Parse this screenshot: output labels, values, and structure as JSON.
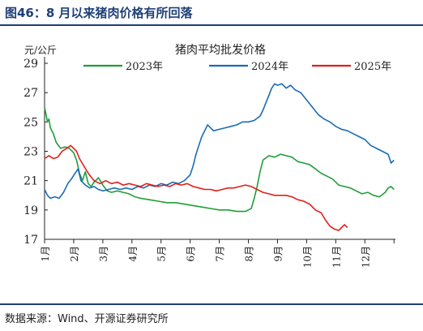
{
  "figure": {
    "title": "图46：8 月以来猪肉价格有所回落",
    "source": "数据来源：Wind、开源证券研究所"
  },
  "chart_data": {
    "type": "line",
    "title": "猪肉平均批发价格",
    "ylabel": "元/公斤",
    "xlabel": "",
    "ylim": [
      17,
      29
    ],
    "yticks": [
      17,
      19,
      21,
      23,
      25,
      27,
      29
    ],
    "xlim": [
      0,
      12.05
    ],
    "x_ticklabels": [
      "1月",
      "2月",
      "3月",
      "4月",
      "5月",
      "6月",
      "7月",
      "8月",
      "9月",
      "10月",
      "11月",
      "12月"
    ],
    "grid": false,
    "legend_position": "top",
    "series": [
      {
        "name": "2023年",
        "color": "#1f9e3a",
        "x": [
          0.0,
          0.05,
          0.1,
          0.15,
          0.2,
          0.3,
          0.4,
          0.55,
          0.7,
          0.85,
          1.0,
          1.1,
          1.2,
          1.3,
          1.4,
          1.5,
          1.6,
          1.7,
          1.85,
          2.0,
          2.15,
          2.3,
          2.5,
          2.7,
          2.9,
          3.1,
          3.3,
          3.6,
          3.9,
          4.2,
          4.5,
          4.8,
          5.1,
          5.4,
          5.7,
          6.0,
          6.3,
          6.6,
          6.9,
          7.0,
          7.1,
          7.2,
          7.3,
          7.4,
          7.5,
          7.7,
          7.9,
          8.1,
          8.3,
          8.5,
          8.7,
          8.9,
          9.1,
          9.3,
          9.5,
          9.7,
          9.9,
          10.1,
          10.3,
          10.5,
          10.7,
          10.9,
          11.1,
          11.3,
          11.5,
          11.7,
          11.8,
          11.9,
          12.0
        ],
        "values": [
          26.0,
          25.5,
          25.0,
          25.2,
          24.6,
          24.2,
          23.6,
          23.2,
          23.3,
          23.2,
          22.9,
          22.4,
          21.5,
          21.0,
          21.6,
          20.8,
          20.6,
          20.9,
          21.2,
          20.7,
          20.3,
          20.2,
          20.3,
          20.2,
          20.1,
          19.9,
          19.8,
          19.7,
          19.6,
          19.5,
          19.5,
          19.4,
          19.3,
          19.2,
          19.1,
          19.0,
          19.0,
          18.9,
          18.9,
          19.0,
          19.1,
          19.8,
          20.6,
          21.6,
          22.4,
          22.7,
          22.6,
          22.8,
          22.7,
          22.6,
          22.3,
          22.2,
          22.1,
          21.8,
          21.5,
          21.3,
          21.1,
          20.7,
          20.6,
          20.5,
          20.3,
          20.1,
          20.2,
          20.0,
          19.9,
          20.2,
          20.5,
          20.6,
          20.4
        ]
      },
      {
        "name": "2024年",
        "color": "#1a6cb5",
        "x": [
          0.0,
          0.1,
          0.2,
          0.35,
          0.5,
          0.65,
          0.8,
          0.95,
          1.05,
          1.15,
          1.25,
          1.4,
          1.55,
          1.7,
          1.85,
          2.0,
          2.2,
          2.4,
          2.6,
          2.8,
          3.0,
          3.2,
          3.4,
          3.6,
          3.8,
          4.0,
          4.2,
          4.4,
          4.6,
          4.8,
          5.0,
          5.1,
          5.2,
          5.3,
          5.4,
          5.5,
          5.6,
          5.7,
          5.8,
          6.0,
          6.2,
          6.4,
          6.6,
          6.8,
          7.0,
          7.2,
          7.4,
          7.5,
          7.6,
          7.7,
          7.8,
          7.9,
          8.0,
          8.15,
          8.3,
          8.45,
          8.6,
          8.8,
          9.0,
          9.2,
          9.4,
          9.6,
          9.8,
          10.0,
          10.2,
          10.4,
          10.6,
          10.8,
          11.0,
          11.2,
          11.4,
          11.6,
          11.8,
          11.9,
          12.0
        ],
        "values": [
          20.4,
          20.0,
          19.8,
          19.9,
          19.8,
          20.2,
          20.8,
          21.2,
          21.5,
          21.8,
          21.0,
          20.7,
          20.5,
          20.6,
          20.4,
          20.3,
          20.4,
          20.5,
          20.4,
          20.5,
          20.4,
          20.6,
          20.5,
          20.7,
          20.6,
          20.8,
          20.7,
          20.9,
          20.8,
          21.0,
          21.4,
          22.0,
          22.8,
          23.4,
          24.0,
          24.4,
          24.8,
          24.6,
          24.4,
          24.5,
          24.6,
          24.7,
          24.8,
          25.0,
          25.0,
          25.1,
          25.4,
          25.8,
          26.3,
          26.8,
          27.3,
          27.6,
          27.5,
          27.6,
          27.3,
          27.5,
          27.2,
          27.0,
          26.5,
          26.0,
          25.5,
          25.2,
          25.0,
          24.7,
          24.5,
          24.4,
          24.2,
          24.0,
          23.8,
          23.4,
          23.2,
          23.0,
          22.8,
          22.2,
          22.4
        ]
      },
      {
        "name": "2025年",
        "color": "#e0201b",
        "x": [
          0.0,
          0.15,
          0.3,
          0.45,
          0.6,
          0.75,
          0.9,
          1.0,
          1.1,
          1.2,
          1.35,
          1.5,
          1.7,
          1.9,
          2.1,
          2.3,
          2.5,
          2.7,
          2.9,
          3.1,
          3.3,
          3.5,
          3.7,
          3.9,
          4.1,
          4.3,
          4.5,
          4.7,
          4.9,
          5.1,
          5.3,
          5.5,
          5.7,
          5.9,
          6.1,
          6.3,
          6.5,
          6.7,
          6.9,
          7.1,
          7.3,
          7.5,
          7.7,
          7.9,
          8.1,
          8.3,
          8.5,
          8.7,
          8.9,
          9.1,
          9.3,
          9.5,
          9.65,
          9.8,
          9.95,
          10.1,
          10.2,
          10.3,
          10.4
        ],
        "values": [
          22.5,
          22.7,
          22.5,
          22.6,
          23.0,
          23.2,
          23.4,
          23.2,
          23.0,
          22.5,
          22.0,
          21.5,
          21.0,
          20.8,
          21.0,
          20.8,
          20.9,
          20.7,
          20.8,
          20.7,
          20.6,
          20.8,
          20.7,
          20.6,
          20.7,
          20.6,
          20.8,
          20.7,
          20.8,
          20.6,
          20.5,
          20.4,
          20.4,
          20.3,
          20.4,
          20.5,
          20.5,
          20.6,
          20.7,
          20.6,
          20.4,
          20.2,
          20.1,
          20.0,
          20.0,
          20.0,
          19.9,
          19.7,
          19.6,
          19.4,
          19.0,
          18.8,
          18.3,
          17.9,
          17.7,
          17.6,
          17.8,
          18.0,
          17.8
        ]
      }
    ]
  }
}
